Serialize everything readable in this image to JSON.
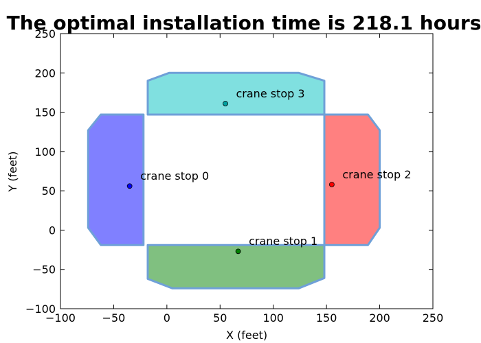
{
  "chart_data": {
    "type": "scatter",
    "title": "The optimal installation time is  218.1 hours",
    "xlabel": "X (feet)",
    "ylabel": "Y (feet)",
    "xlim": [
      -100,
      250
    ],
    "ylim": [
      -100,
      250
    ],
    "xticks": [
      -100,
      -50,
      0,
      50,
      100,
      150,
      200,
      250
    ],
    "yticks": [
      -100,
      -50,
      0,
      50,
      100,
      150,
      200,
      250
    ],
    "xtick_labels": [
      "−100",
      "−50",
      "0",
      "50",
      "100",
      "150",
      "200",
      "250"
    ],
    "ytick_labels": [
      "−100",
      "−50",
      "0",
      "50",
      "100",
      "150",
      "200",
      "250"
    ],
    "grid": false,
    "regions": [
      {
        "name": "region-0",
        "fill": "#8080ff",
        "stroke": "#6fa0d8",
        "points": [
          [
            -62,
            147
          ],
          [
            -22,
            147
          ],
          [
            -22,
            -19
          ],
          [
            -62,
            -19
          ],
          [
            -74,
            3
          ],
          [
            -74,
            127
          ]
        ]
      },
      {
        "name": "region-1",
        "fill": "#80c080",
        "stroke": "#6fa0d8",
        "points": [
          [
            -18,
            -19
          ],
          [
            148,
            -19
          ],
          [
            148,
            -61
          ],
          [
            124,
            -74
          ],
          [
            5,
            -74
          ],
          [
            -18,
            -62
          ]
        ]
      },
      {
        "name": "region-2",
        "fill": "#ff8080",
        "stroke": "#6fa0d8",
        "points": [
          [
            148,
            147
          ],
          [
            189,
            147
          ],
          [
            200,
            127
          ],
          [
            200,
            3
          ],
          [
            189,
            -19
          ],
          [
            148,
            -19
          ]
        ]
      },
      {
        "name": "region-3",
        "fill": "#80e0e0",
        "stroke": "#6fa0d8",
        "points": [
          [
            -18,
            147
          ],
          [
            148,
            147
          ],
          [
            148,
            190
          ],
          [
            124,
            200
          ],
          [
            2,
            200
          ],
          [
            -18,
            190
          ]
        ]
      }
    ],
    "points": [
      {
        "label": "crane stop 0",
        "x": -35,
        "y": 56,
        "color": "#0000ff",
        "label_x": -25,
        "label_y": 64
      },
      {
        "label": "crane stop 1",
        "x": 67,
        "y": -27,
        "color": "#008000",
        "label_x": 77,
        "label_y": -19
      },
      {
        "label": "crane stop 2",
        "x": 155,
        "y": 58,
        "color": "#ff0000",
        "label_x": 165,
        "label_y": 66
      },
      {
        "label": "crane stop 3",
        "x": 55,
        "y": 161,
        "color": "#00a0a0",
        "label_x": 65,
        "label_y": 169
      }
    ]
  }
}
